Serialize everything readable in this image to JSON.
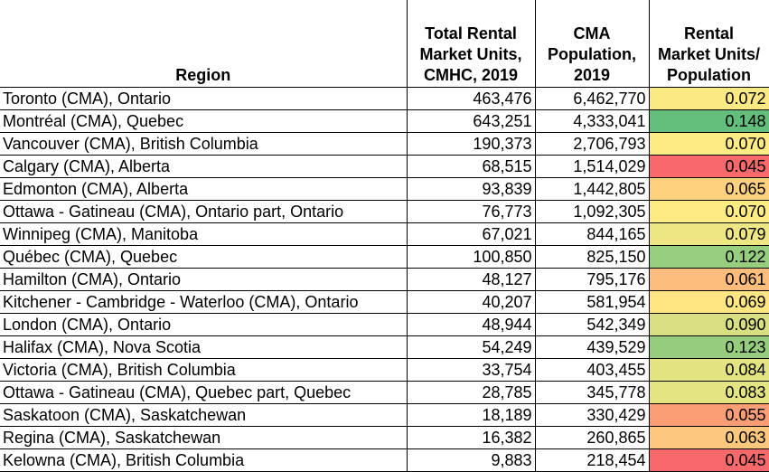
{
  "header": {
    "region": "Region",
    "units": [
      "Total Rental",
      "Market Units,",
      "CMHC, 2019"
    ],
    "population": [
      "CMA",
      "Population,",
      "2019"
    ],
    "ratio": [
      "Rental",
      "Market Units/",
      "Population"
    ]
  },
  "colors": {
    "low": "#f8696b",
    "mid": "#ffeb84",
    "high": "#63be7b"
  },
  "chart_data": {
    "type": "table",
    "columns": [
      "Region",
      "Total Rental Market Units, CMHC, 2019",
      "CMA Population, 2019",
      "Rental Market Units/ Population"
    ],
    "rows": [
      {
        "region": "Toronto (CMA), Ontario",
        "units": "463,476",
        "population": "6,462,770",
        "ratio": "0.072",
        "ratio_value": 0.072
      },
      {
        "region": "Montréal (CMA), Quebec",
        "units": "643,251",
        "population": "4,333,041",
        "ratio": "0.148",
        "ratio_value": 0.148
      },
      {
        "region": "Vancouver (CMA), British Columbia",
        "units": "190,373",
        "population": "2,706,793",
        "ratio": "0.070",
        "ratio_value": 0.07
      },
      {
        "region": "Calgary (CMA), Alberta",
        "units": "68,515",
        "population": "1,514,029",
        "ratio": "0.045",
        "ratio_value": 0.045
      },
      {
        "region": "Edmonton (CMA), Alberta",
        "units": "93,839",
        "population": "1,442,805",
        "ratio": "0.065",
        "ratio_value": 0.065
      },
      {
        "region": "Ottawa - Gatineau (CMA), Ontario part, Ontario",
        "units": "76,773",
        "population": "1,092,305",
        "ratio": "0.070",
        "ratio_value": 0.07
      },
      {
        "region": "Winnipeg (CMA), Manitoba",
        "units": "67,021",
        "population": "844,165",
        "ratio": "0.079",
        "ratio_value": 0.079
      },
      {
        "region": "Québec (CMA), Quebec",
        "units": "100,850",
        "population": "825,150",
        "ratio": "0.122",
        "ratio_value": 0.122
      },
      {
        "region": "Hamilton (CMA), Ontario",
        "units": "48,127",
        "population": "795,176",
        "ratio": "0.061",
        "ratio_value": 0.061
      },
      {
        "region": "Kitchener - Cambridge - Waterloo (CMA), Ontario",
        "units": "40,207",
        "population": "581,954",
        "ratio": "0.069",
        "ratio_value": 0.069
      },
      {
        "region": "London (CMA), Ontario",
        "units": "48,944",
        "population": "542,349",
        "ratio": "0.090",
        "ratio_value": 0.09
      },
      {
        "region": "Halifax (CMA), Nova Scotia",
        "units": "54,249",
        "population": "439,529",
        "ratio": "0.123",
        "ratio_value": 0.123
      },
      {
        "region": "Victoria (CMA), British Columbia",
        "units": "33,754",
        "population": "403,455",
        "ratio": "0.084",
        "ratio_value": 0.084
      },
      {
        "region": "Ottawa - Gatineau (CMA), Quebec part, Quebec",
        "units": "28,785",
        "population": "345,778",
        "ratio": "0.083",
        "ratio_value": 0.083
      },
      {
        "region": "Saskatoon (CMA), Saskatchewan",
        "units": "18,189",
        "population": "330,429",
        "ratio": "0.055",
        "ratio_value": 0.055
      },
      {
        "region": "Regina (CMA), Saskatchewan",
        "units": "16,382",
        "population": "260,865",
        "ratio": "0.063",
        "ratio_value": 0.063
      },
      {
        "region": "Kelowna (CMA), British Columbia",
        "units": "9,883",
        "population": "218,454",
        "ratio": "0.045",
        "ratio_value": 0.045
      }
    ]
  }
}
